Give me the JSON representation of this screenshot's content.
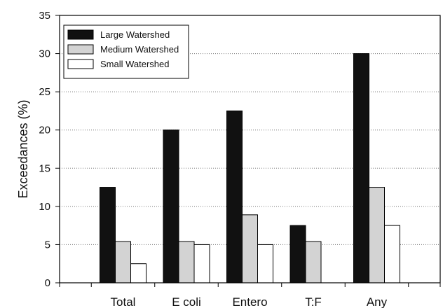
{
  "chart_data": {
    "type": "bar",
    "title": "",
    "xlabel": "",
    "ylabel": "Exceedances (%)",
    "categories": [
      "Total",
      "E coli",
      "Entero",
      "T:F",
      "Any"
    ],
    "series": [
      {
        "name": "Large Watershed",
        "color": "#111111",
        "values": [
          12.5,
          20,
          22.5,
          7.5,
          30
        ]
      },
      {
        "name": "Medium Watershed",
        "color": "#d3d3d3",
        "values": [
          5.4,
          5.4,
          8.9,
          5.4,
          12.5
        ]
      },
      {
        "name": "Small Watershed",
        "color": "#ffffff",
        "values": [
          2.5,
          5,
          5,
          0,
          7.5
        ]
      }
    ],
    "ylim": [
      0,
      35
    ],
    "yticks": [
      0,
      5,
      10,
      15,
      20,
      25,
      30,
      35
    ],
    "grid": "horizontal-dotted",
    "legend_position": "top-left"
  }
}
